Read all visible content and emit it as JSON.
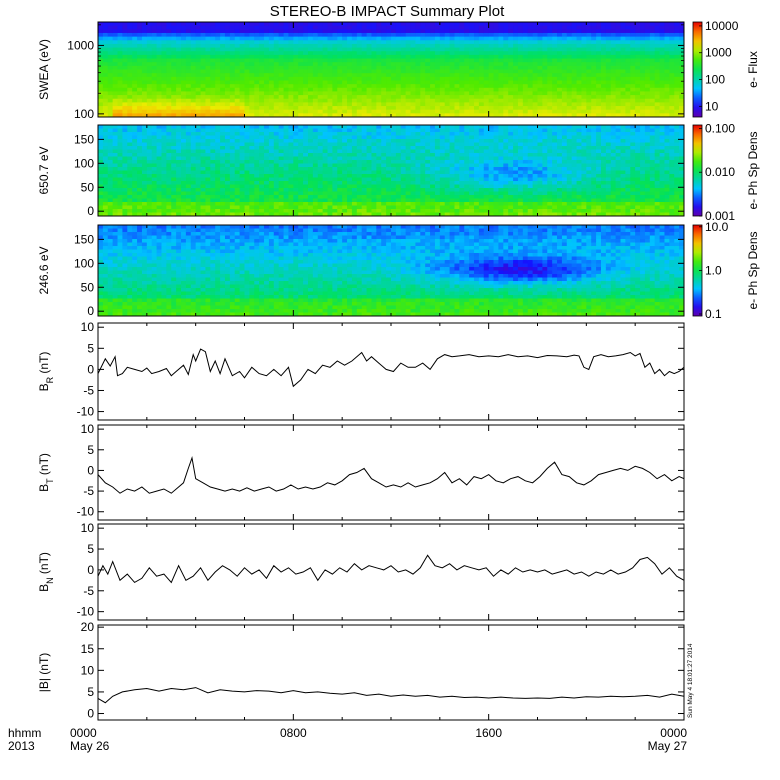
{
  "title": "STEREO-B IMPACT Summary Plot",
  "stamp": "Sun May  4 18:01:27 2014",
  "x_axis": {
    "label_line1": "hhmm",
    "label_line2": "2013",
    "ticks": [
      {
        "hour": 0,
        "label": "0000",
        "sub": "May 26"
      },
      {
        "hour": 8,
        "label": "0800",
        "sub": ""
      },
      {
        "hour": 16,
        "label": "1600",
        "sub": ""
      },
      {
        "hour": 24,
        "label": "0000",
        "sub": "May 27"
      }
    ],
    "range_hours": [
      0,
      24
    ]
  },
  "chart_data": [
    {
      "type": "heatmap",
      "id": "swea",
      "ylabel": "SWEA (eV)",
      "yscale": "log",
      "ylim": [
        90,
        2200
      ],
      "yticks": [
        100,
        1000
      ],
      "yticklabels": [
        "100",
        "1000"
      ],
      "colorbar": {
        "label": "e- Flux",
        "scale": "log",
        "range": [
          4,
          14000
        ],
        "ticks": [
          10,
          100,
          1000,
          10000
        ],
        "ticklabels": [
          "10",
          "100",
          "1000",
          "10000"
        ]
      }
    },
    {
      "type": "heatmap",
      "id": "pad650",
      "ylabel": "650.7 eV",
      "yscale": "linear",
      "ylim": [
        -10,
        180
      ],
      "yticks": [
        0,
        50,
        100,
        150
      ],
      "yticklabels": [
        "0",
        "50",
        "100",
        "150"
      ],
      "colorbar": {
        "label": "e- Ph Sp Dens",
        "scale": "log",
        "range": [
          0.001,
          0.12
        ],
        "ticks": [
          0.001,
          0.01,
          0.1
        ],
        "ticklabels": [
          "0.001",
          "0.010",
          "0.100"
        ]
      }
    },
    {
      "type": "heatmap",
      "id": "pad246",
      "ylabel": "246.6 eV",
      "yscale": "linear",
      "ylim": [
        -10,
        180
      ],
      "yticks": [
        0,
        50,
        100,
        150
      ],
      "yticklabels": [
        "0",
        "50",
        "100",
        "150"
      ],
      "colorbar": {
        "label": "e- Ph Sp Dens",
        "scale": "log",
        "range": [
          0.09,
          11
        ],
        "ticks": [
          0.1,
          1,
          10
        ],
        "ticklabels": [
          "0.1",
          "1.0",
          "10.0"
        ]
      }
    },
    {
      "type": "line",
      "id": "br",
      "ylabel": "BR (nT)",
      "ylabel_main": "B",
      "ylabel_sub": "R",
      "ylabel_unit": " (nT)",
      "ylim": [
        -12,
        11
      ],
      "yticks": [
        -10,
        -5,
        0,
        5,
        10
      ],
      "yticklabels": [
        "-10",
        "-5",
        "0",
        "5",
        "10"
      ],
      "series": [
        {
          "x": [
            0,
            0.3,
            0.5,
            0.7,
            0.8,
            1.0,
            1.2,
            1.5,
            1.8,
            2.0,
            2.2,
            2.5,
            2.8,
            3.0,
            3.2,
            3.5,
            3.7,
            3.9,
            4.0,
            4.2,
            4.4,
            4.6,
            4.8,
            5.0,
            5.2,
            5.5,
            5.8,
            6.0,
            6.3,
            6.6,
            6.9,
            7.2,
            7.5,
            7.8,
            8.0,
            8.3,
            8.6,
            8.9,
            9.2,
            9.5,
            9.8,
            10.1,
            10.4,
            10.8,
            11.0,
            11.2,
            11.5,
            11.8,
            12.1,
            12.4,
            12.7,
            13.0,
            13.3,
            13.6,
            13.9,
            14.2,
            14.5,
            14.8,
            15.2,
            15.6,
            16.0,
            16.4,
            16.8,
            17.2,
            17.6,
            18.0,
            18.4,
            18.8,
            19.2,
            19.5,
            19.7,
            19.9,
            20.1,
            20.3,
            20.6,
            20.9,
            21.2,
            21.5,
            21.8,
            22.0,
            22.2,
            22.4,
            22.6,
            22.8,
            23.0,
            23.2,
            23.4,
            23.6,
            23.8,
            24.0
          ],
          "y": [
            -1.0,
            2.5,
            0.8,
            3.0,
            -1.5,
            -1.0,
            0.5,
            0.0,
            -0.5,
            0.3,
            -1.0,
            -0.5,
            0.2,
            -1.5,
            -0.5,
            1.0,
            -1.2,
            3.5,
            2.0,
            4.8,
            4.2,
            -0.5,
            2.0,
            -1.0,
            2.5,
            -1.5,
            -0.5,
            -2.0,
            0.5,
            -1.0,
            -1.5,
            0.0,
            -1.5,
            0.5,
            -4.0,
            -2.5,
            0.0,
            -1.0,
            1.0,
            0.5,
            2.0,
            1.0,
            2.0,
            4.0,
            2.0,
            3.0,
            1.5,
            0.0,
            -0.5,
            1.5,
            0.5,
            0.5,
            1.5,
            0.0,
            2.5,
            3.5,
            3.0,
            3.2,
            3.5,
            3.0,
            3.2,
            3.0,
            3.5,
            3.0,
            3.2,
            2.8,
            3.3,
            3.2,
            3.0,
            3.4,
            3.2,
            0.5,
            0.0,
            3.0,
            3.5,
            3.0,
            3.2,
            3.5,
            4.0,
            3.2,
            3.8,
            0.5,
            1.5,
            -1.0,
            0.0,
            -1.5,
            -0.5,
            -1.0,
            -0.5,
            0.5
          ]
        }
      ]
    },
    {
      "type": "line",
      "id": "bt",
      "ylabel": "BT (nT)",
      "ylabel_main": "B",
      "ylabel_sub": "T",
      "ylabel_unit": " (nT)",
      "ylim": [
        -12,
        11
      ],
      "yticks": [
        -10,
        -5,
        0,
        5,
        10
      ],
      "yticklabels": [
        "-10",
        "-5",
        "0",
        "5",
        "10"
      ],
      "series": [
        {
          "x": [
            0,
            0.3,
            0.6,
            0.9,
            1.2,
            1.5,
            1.8,
            2.1,
            2.4,
            2.7,
            3.0,
            3.3,
            3.5,
            3.7,
            3.85,
            4.0,
            4.3,
            4.6,
            4.9,
            5.2,
            5.5,
            5.8,
            6.1,
            6.4,
            6.7,
            7.0,
            7.3,
            7.6,
            7.9,
            8.2,
            8.5,
            8.8,
            9.1,
            9.4,
            9.7,
            10.0,
            10.3,
            10.6,
            10.9,
            11.2,
            11.5,
            11.8,
            12.1,
            12.4,
            12.7,
            13.0,
            13.3,
            13.6,
            13.9,
            14.2,
            14.5,
            14.8,
            15.1,
            15.4,
            15.7,
            16.0,
            16.3,
            16.6,
            16.9,
            17.2,
            17.5,
            17.8,
            18.1,
            18.4,
            18.7,
            19.0,
            19.3,
            19.6,
            19.9,
            20.2,
            20.5,
            20.8,
            21.1,
            21.4,
            21.7,
            22.0,
            22.3,
            22.6,
            22.9,
            23.2,
            23.5,
            23.8,
            24.0
          ],
          "y": [
            -1.0,
            -3.0,
            -4.0,
            -5.5,
            -4.5,
            -5.0,
            -4.0,
            -5.5,
            -5.0,
            -4.5,
            -5.5,
            -4.0,
            -3.0,
            0.5,
            3.0,
            -2.0,
            -3.0,
            -4.0,
            -4.5,
            -5.0,
            -4.5,
            -5.0,
            -4.2,
            -5.0,
            -4.5,
            -4.0,
            -5.0,
            -4.5,
            -3.5,
            -4.5,
            -4.0,
            -4.5,
            -4.0,
            -3.0,
            -3.5,
            -2.5,
            -1.0,
            -0.5,
            0.5,
            -2.0,
            -3.0,
            -4.0,
            -3.5,
            -4.0,
            -3.0,
            -4.0,
            -3.5,
            -3.0,
            -2.0,
            -0.5,
            -3.0,
            -2.0,
            -3.5,
            -1.5,
            -2.0,
            -1.0,
            -2.5,
            -3.0,
            -2.0,
            -1.5,
            -2.5,
            -3.0,
            -1.5,
            0.5,
            2.0,
            -1.0,
            -1.5,
            -3.0,
            -3.5,
            -2.5,
            -1.0,
            -0.5,
            0.0,
            0.5,
            0.0,
            1.0,
            0.5,
            -0.5,
            -2.0,
            -1.0,
            -2.5,
            -1.5,
            -2.0
          ]
        }
      ]
    },
    {
      "type": "line",
      "id": "bn",
      "ylabel": "BN (nT)",
      "ylabel_main": "B",
      "ylabel_sub": "N",
      "ylabel_unit": " (nT)",
      "ylim": [
        -12,
        11
      ],
      "yticks": [
        -10,
        -5,
        0,
        5,
        10
      ],
      "yticklabels": [
        "-10",
        "-5",
        "0",
        "5",
        "10"
      ],
      "series": [
        {
          "x": [
            0,
            0.2,
            0.4,
            0.6,
            0.9,
            1.2,
            1.5,
            1.8,
            2.1,
            2.4,
            2.7,
            3.0,
            3.3,
            3.6,
            3.9,
            4.2,
            4.5,
            4.8,
            5.1,
            5.4,
            5.7,
            6.0,
            6.3,
            6.6,
            6.9,
            7.2,
            7.5,
            7.8,
            8.1,
            8.4,
            8.7,
            9.0,
            9.3,
            9.6,
            9.9,
            10.2,
            10.5,
            10.8,
            11.1,
            11.4,
            11.7,
            12.0,
            12.3,
            12.6,
            12.9,
            13.2,
            13.5,
            13.8,
            14.1,
            14.4,
            14.7,
            15.0,
            15.3,
            15.6,
            15.9,
            16.2,
            16.5,
            16.8,
            17.1,
            17.4,
            17.7,
            18.0,
            18.3,
            18.6,
            18.9,
            19.2,
            19.5,
            19.8,
            20.1,
            20.4,
            20.7,
            21.0,
            21.3,
            21.6,
            21.9,
            22.2,
            22.5,
            22.8,
            23.1,
            23.4,
            23.7,
            24.0
          ],
          "y": [
            -1.5,
            1.0,
            -1.0,
            2.0,
            -2.5,
            -1.0,
            -3.0,
            -2.0,
            0.5,
            -1.5,
            -1.0,
            -3.0,
            1.0,
            -2.5,
            -1.5,
            0.5,
            -2.5,
            -0.5,
            1.0,
            0.0,
            -1.5,
            0.5,
            -1.0,
            0.0,
            -2.0,
            1.0,
            -0.5,
            0.5,
            -1.0,
            -0.5,
            0.5,
            -2.5,
            0.0,
            -1.0,
            0.5,
            -0.5,
            1.5,
            0.0,
            1.0,
            0.5,
            0.0,
            1.0,
            -0.5,
            0.0,
            -1.0,
            0.5,
            3.5,
            1.0,
            0.5,
            1.5,
            0.0,
            1.0,
            0.5,
            0.0,
            0.5,
            -1.5,
            0.0,
            -1.0,
            0.5,
            -0.5,
            0.0,
            -0.5,
            0.0,
            -1.0,
            -0.5,
            0.0,
            -1.0,
            -0.5,
            -1.5,
            -0.5,
            -1.0,
            0.0,
            -1.0,
            -0.5,
            0.5,
            2.5,
            3.0,
            1.5,
            -1.0,
            0.5,
            -1.5,
            -2.5
          ]
        }
      ]
    },
    {
      "type": "line",
      "id": "bmag",
      "ylabel": "|B| (nT)",
      "ylabel_main": "|B|",
      "ylabel_sub": "",
      "ylabel_unit": " (nT)",
      "ylim": [
        -1.5,
        20.5
      ],
      "yticks": [
        0,
        5,
        10,
        15,
        20
      ],
      "yticklabels": [
        "0",
        "5",
        "10",
        "15",
        "20"
      ],
      "series": [
        {
          "x": [
            0,
            0.3,
            0.6,
            1.0,
            1.5,
            2.0,
            2.5,
            3.0,
            3.5,
            4.0,
            4.5,
            5.0,
            5.5,
            6.0,
            6.5,
            7.0,
            7.5,
            8.0,
            8.5,
            9.0,
            9.5,
            10.0,
            10.5,
            11.0,
            11.5,
            12.0,
            12.5,
            13.0,
            13.5,
            14.0,
            14.5,
            15.0,
            15.5,
            16.0,
            16.5,
            17.0,
            17.5,
            18.0,
            18.5,
            19.0,
            19.5,
            20.0,
            20.5,
            21.0,
            21.5,
            22.0,
            22.5,
            23.0,
            23.5,
            24.0
          ],
          "y": [
            3.5,
            2.5,
            4.0,
            5.0,
            5.5,
            5.8,
            5.2,
            5.8,
            5.5,
            6.0,
            4.8,
            5.5,
            5.2,
            5.0,
            5.3,
            5.2,
            4.8,
            5.3,
            4.8,
            5.0,
            4.7,
            4.5,
            4.8,
            4.2,
            4.5,
            4.0,
            4.3,
            4.0,
            4.2,
            3.8,
            4.0,
            3.7,
            3.8,
            3.6,
            3.8,
            3.6,
            3.5,
            3.6,
            3.5,
            3.8,
            3.6,
            3.9,
            3.8,
            4.0,
            3.9,
            4.0,
            4.2,
            3.8,
            4.5,
            4.0
          ]
        }
      ]
    }
  ]
}
